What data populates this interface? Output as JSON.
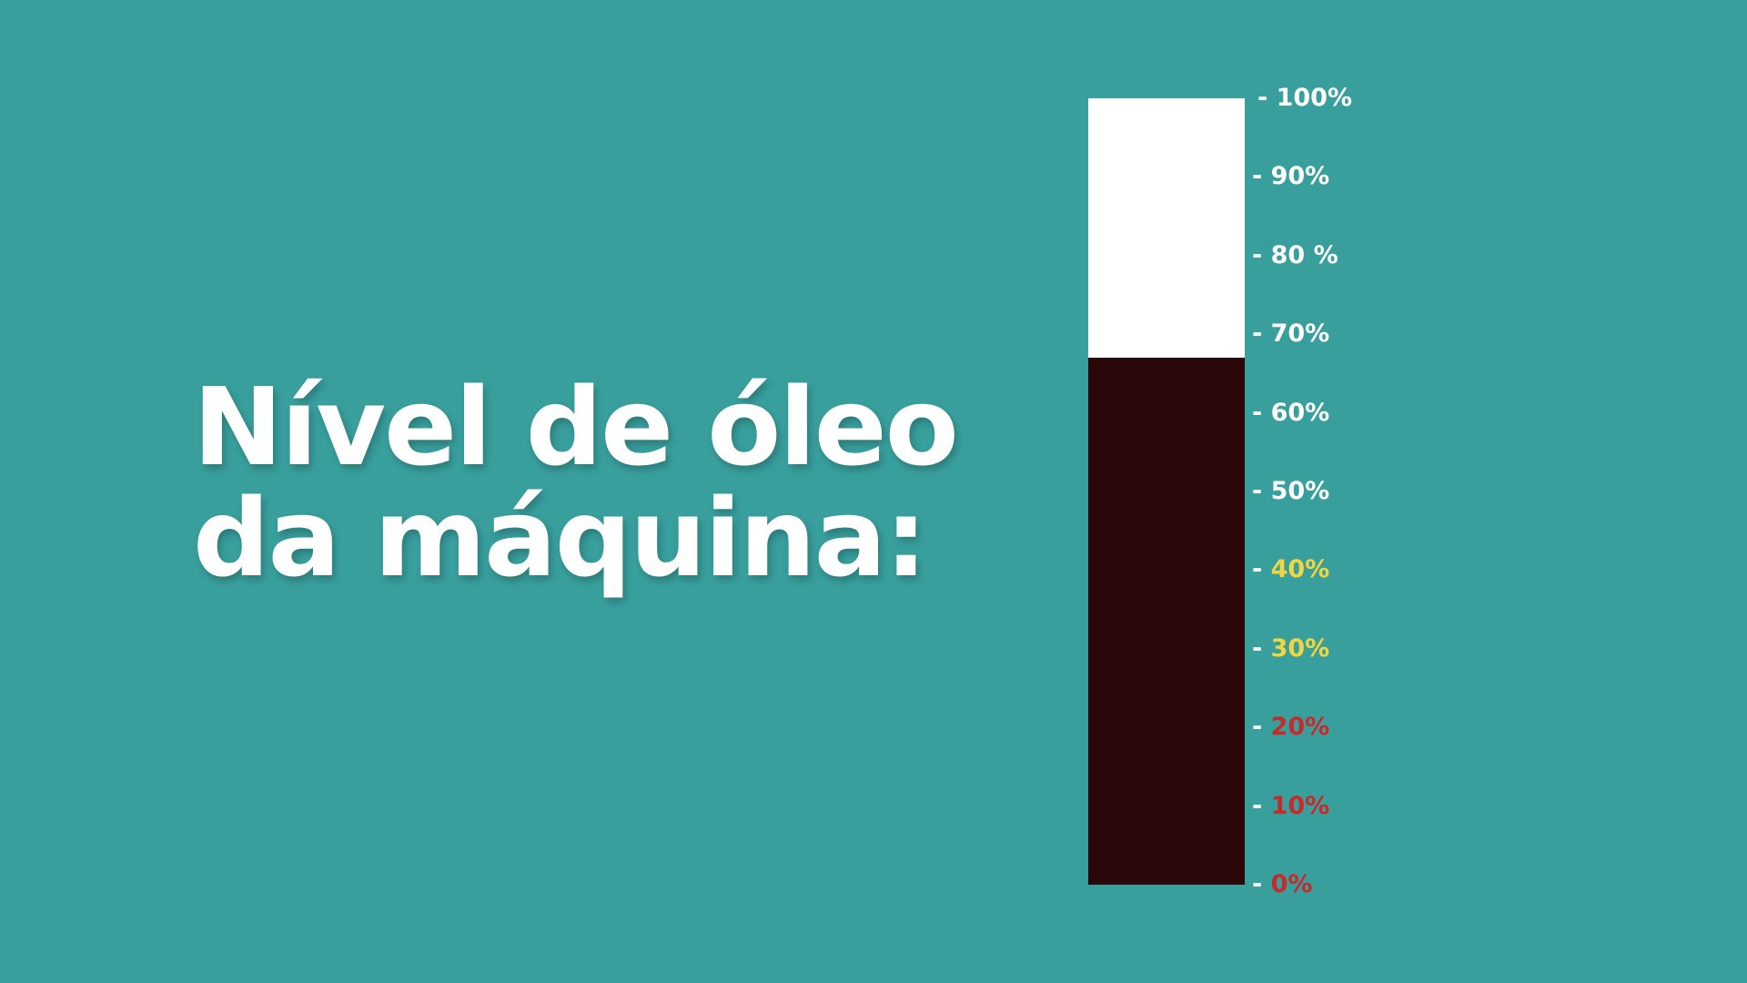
{
  "colors": {
    "background": "#389f9d",
    "title_text": "#ffffff",
    "gauge_empty": "#ffffff",
    "oil": "#2a080a"
  },
  "title": {
    "line1": "Nível de óleo",
    "line2": "da máquina:"
  },
  "gauge": {
    "level_percent": 67,
    "scale": [
      {
        "dash": "- ",
        "text": "100%",
        "value": 100,
        "color": "#ffffff"
      },
      {
        "dash": "- ",
        "text": "90%",
        "value": 90,
        "color": "#ffffff"
      },
      {
        "dash": "- ",
        "text": "80 %",
        "value": 80,
        "color": "#ffffff"
      },
      {
        "dash": "- ",
        "text": "70%",
        "value": 70,
        "color": "#ffffff"
      },
      {
        "dash": "- ",
        "text": "60%",
        "value": 60,
        "color": "#ffffff"
      },
      {
        "dash": "- ",
        "text": "50%",
        "value": 50,
        "color": "#ffffff"
      },
      {
        "dash": "- ",
        "text": "40%",
        "value": 40,
        "color": "#f2d640"
      },
      {
        "dash": "- ",
        "text": "30%",
        "value": 30,
        "color": "#f2d640"
      },
      {
        "dash": "- ",
        "text": "20%",
        "value": 20,
        "color": "#c62a2a"
      },
      {
        "dash": "- ",
        "text": "10%",
        "value": 10,
        "color": "#c62a2a"
      },
      {
        "dash": "- ",
        "text": "0%",
        "value": 0,
        "color": "#c62a2a"
      }
    ]
  }
}
